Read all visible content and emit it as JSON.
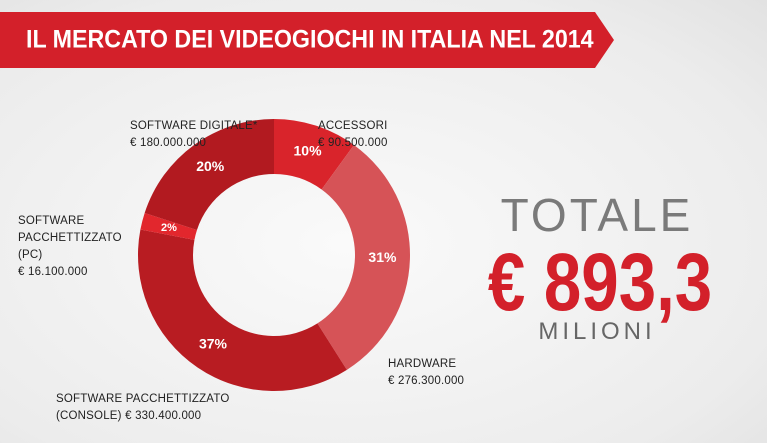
{
  "chart_data": {
    "type": "donut",
    "title": "IL MERCATO DEI VIDEOGIOCHI IN ITALIA NEL 2014",
    "categories": [
      "ACCESSORI",
      "HARDWARE",
      "SOFTWARE PACCHETTIZZATO",
      "SOFTWARE PACCHETTIZZATO (PC)",
      "SOFTWARE DIGITALE*"
    ],
    "values": [
      10,
      31,
      37,
      2,
      20
    ],
    "value_labels": [
      "10%",
      "31%",
      "37%",
      "2%",
      "20%"
    ],
    "amount_labels": [
      "€ 90.500.000",
      "€ 276.300.000",
      "(CONSOLE) € 330.400.000",
      "€ 16.100.000",
      "€ 180.000.000"
    ],
    "colors": [
      "#d9242b",
      "#d65357",
      "#b81c22",
      "#e2272d",
      "#b21a20"
    ],
    "total_title": "TOTALE",
    "total_value": "€ 893,3",
    "total_unit": "MILIONI"
  }
}
